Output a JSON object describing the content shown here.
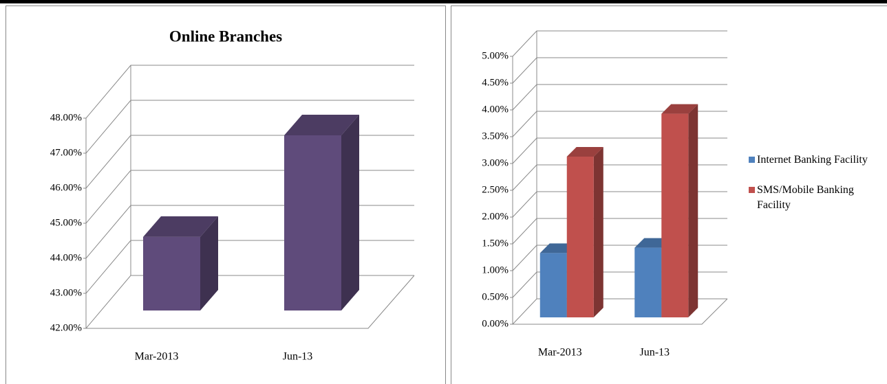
{
  "charts": [
    {
      "chart_data": {
        "type": "bar3d",
        "title": "Online Branches",
        "categories": [
          "Mar-2013",
          "Jun-13"
        ],
        "series": [
          {
            "values": [
              44.1,
              47.0
            ],
            "color": "#5f4b7b"
          }
        ],
        "ylim": [
          42,
          48
        ],
        "yticks": [
          {
            "value": 42,
            "label": "42.00%"
          },
          {
            "value": 43,
            "label": "43.00%"
          },
          {
            "value": 44,
            "label": "44.00%"
          },
          {
            "value": 45,
            "label": "45.00%"
          },
          {
            "value": 46,
            "label": "46.00%"
          },
          {
            "value": 47,
            "label": "47.00%"
          },
          {
            "value": 48,
            "label": "48.00%"
          }
        ],
        "grid": true
      }
    },
    {
      "chart_data": {
        "type": "bar3d",
        "categories": [
          "Mar-2013",
          "Jun-13"
        ],
        "series": [
          {
            "name": "Internet Banking Facility",
            "color": "#4f81bd",
            "values": [
              1.2,
              1.3
            ]
          },
          {
            "name": "SMS/Mobile Banking Facility",
            "color": "#c0504d",
            "values": [
              3.0,
              3.8
            ]
          }
        ],
        "ylim": [
          0,
          5
        ],
        "yticks": [
          {
            "value": 0,
            "label": "0.00%"
          },
          {
            "value": 0.5,
            "label": "0.50%"
          },
          {
            "value": 1,
            "label": "1.00%"
          },
          {
            "value": 1.5,
            "label": "1.50%"
          },
          {
            "value": 2,
            "label": "2.00%"
          },
          {
            "value": 2.5,
            "label": "2.50%"
          },
          {
            "value": 3,
            "label": "3.00%"
          },
          {
            "value": 3.5,
            "label": "3.50%"
          },
          {
            "value": 4,
            "label": "4.00%"
          },
          {
            "value": 4.5,
            "label": "4.50%"
          },
          {
            "value": 5,
            "label": "5.00%"
          }
        ],
        "grid": true,
        "legend": "right"
      }
    }
  ]
}
